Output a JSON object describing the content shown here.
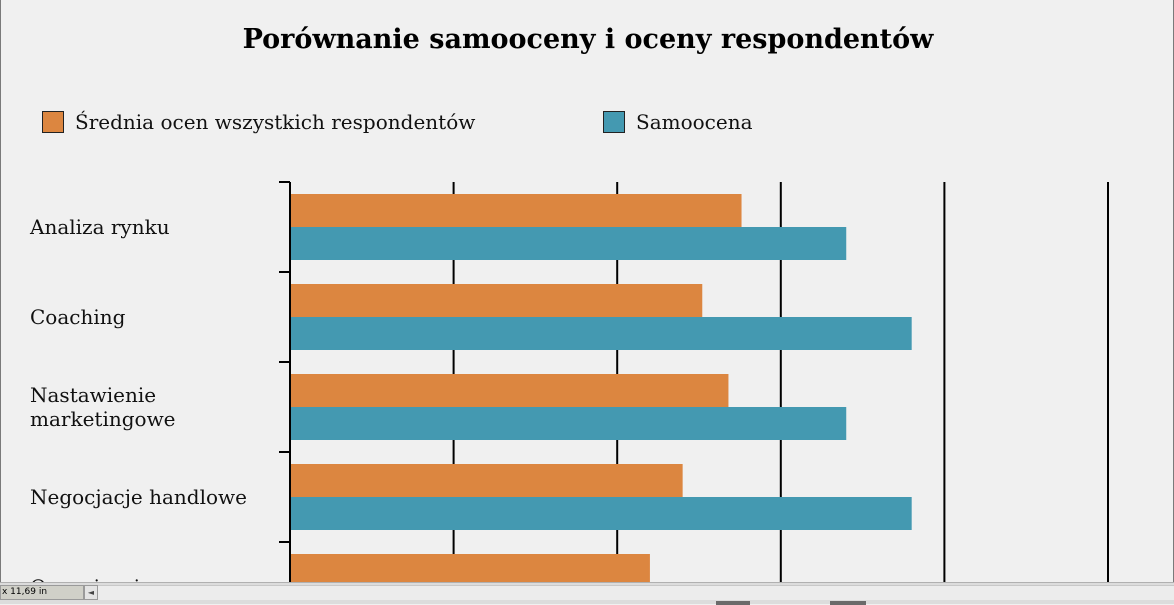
{
  "chart_data": {
    "type": "bar",
    "orientation": "horizontal",
    "title": "Porównanie samooceny i oceny respondentów",
    "legend_placement": "top",
    "categories": [
      [
        "Analiza rynku"
      ],
      [
        "Coaching"
      ],
      [
        "Nastawienie",
        "marketingowe"
      ],
      [
        "Negocjacje handlowe"
      ],
      [
        "Organizacja pracy"
      ]
    ],
    "series": [
      {
        "name": "Średnia ocen wszystkich respondentów",
        "color": "#dc8640",
        "values": [
          2.76,
          2.52,
          2.68,
          2.4,
          2.2
        ]
      },
      {
        "name": "Samoocena",
        "color": "#4499b1",
        "values": [
          3.4,
          3.8,
          3.4,
          3.8,
          null
        ]
      }
    ],
    "xlim": [
      0,
      5
    ],
    "grid": "vertical",
    "tick_labels_visible": false
  },
  "statusbar": {
    "page_size": "x 11,69 in",
    "scroll_left_glyph": "◄"
  }
}
